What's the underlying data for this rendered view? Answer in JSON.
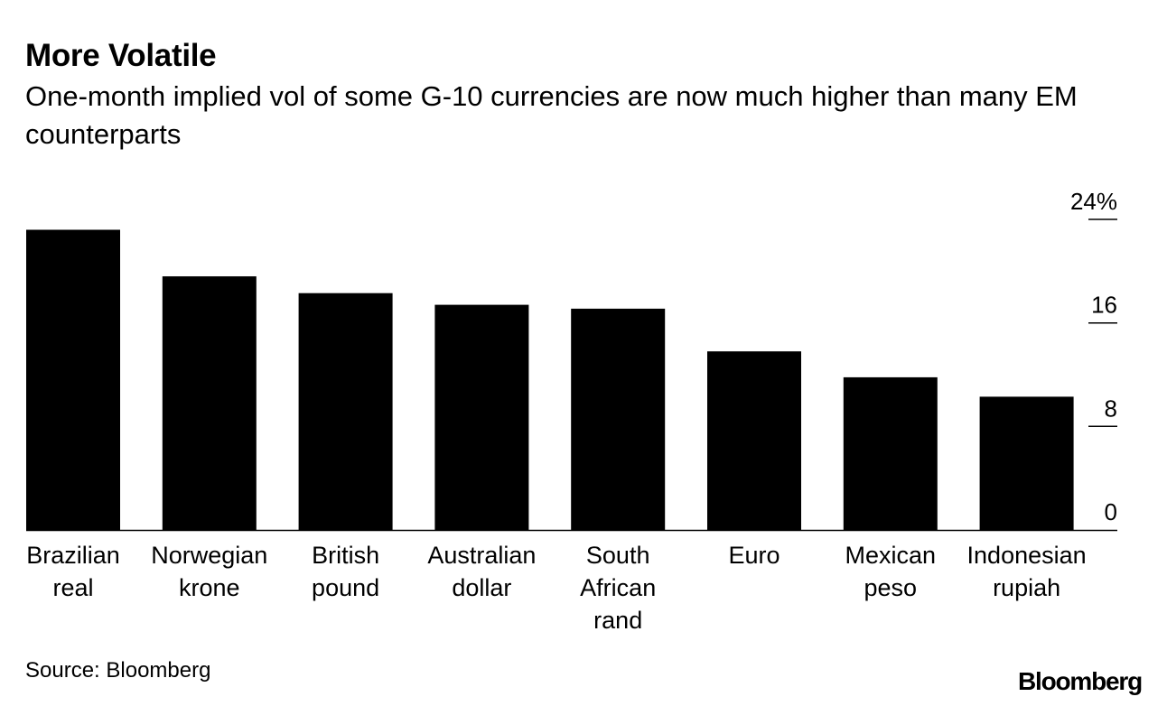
{
  "chart_data": {
    "type": "bar",
    "title": "More Volatile",
    "subtitle": "One-month implied vol of some G-10 currencies are now much higher than many EM counterparts",
    "categories": [
      [
        "Brazilian",
        "real"
      ],
      [
        "Norwegian",
        "krone"
      ],
      [
        "British",
        "pound"
      ],
      [
        "Australian",
        "dollar"
      ],
      [
        "South",
        "African",
        "rand"
      ],
      [
        "Euro"
      ],
      [
        "Mexican",
        "peso"
      ],
      [
        "Indonesian",
        "rupiah"
      ]
    ],
    "values": [
      23.2,
      19.6,
      18.3,
      17.4,
      17.1,
      13.8,
      11.8,
      10.3
    ],
    "ylim": [
      0,
      24
    ],
    "yticks": [
      0,
      8,
      16,
      24
    ],
    "ytick_labels": [
      "0",
      "8",
      "16",
      "24%"
    ],
    "xlabel": "",
    "ylabel": "",
    "grid": false,
    "axis_side": "right",
    "bar_color": "#000000"
  },
  "source": "Source: Bloomberg",
  "brand": "Bloomberg"
}
